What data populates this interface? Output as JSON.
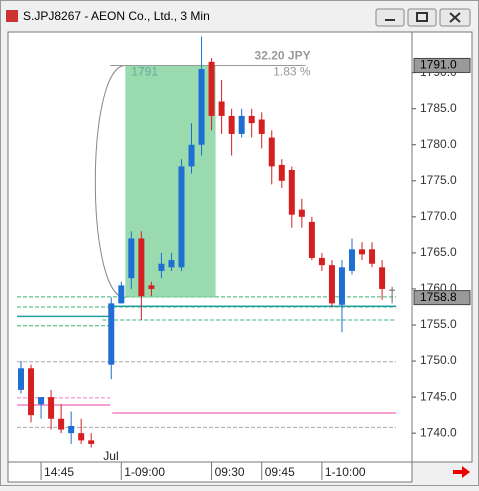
{
  "window": {
    "title": "S.JPJ8267 - AEON Co., Ltd., 3 Min"
  },
  "chart_data": {
    "type": "candlestick",
    "x": [
      null,
      null,
      "14:45",
      null,
      null,
      null,
      null,
      null,
      null,
      null,
      "1-09:00",
      null,
      null,
      null,
      null,
      null,
      null,
      null,
      null,
      "09:30",
      null,
      null,
      null,
      null,
      "09:45",
      null,
      null,
      null,
      null,
      null,
      "1-10:00",
      null,
      null,
      null,
      null,
      null,
      null,
      null
    ],
    "month_label": {
      "index": 9,
      "label": "Jul"
    },
    "series": [
      {
        "up_color": "#1f6ed4",
        "down_color": "#d42020",
        "flat_color": "#666666",
        "open": [
          1746,
          1749,
          1744,
          1745,
          1742,
          1740,
          1740,
          1739,
          null,
          1749.5,
          1758,
          1761.5,
          1767,
          1760.5,
          1762.5,
          1763,
          1763,
          1777,
          1780,
          1791.5,
          1786,
          1784,
          1781.5,
          1784,
          1783.5,
          1781,
          1777.2,
          1776.5,
          1771,
          1769.3,
          1764.3,
          1763.3,
          1757.8,
          1762.5,
          1765.5,
          1765.5,
          1763,
          1759.9
        ],
        "high": [
          1750,
          1749.5,
          1745,
          1746,
          1744,
          1743,
          1742,
          1740,
          null,
          1758.8,
          1761,
          1768,
          1768,
          1761,
          1765,
          1765,
          1778,
          1783,
          1795,
          1792,
          1789,
          1785,
          1785,
          1785,
          1784.5,
          1782,
          1778,
          1777,
          1772.5,
          1770,
          1765,
          1764,
          1764,
          1767,
          1766.5,
          1766.5,
          1764,
          1760.3
        ],
        "low": [
          1745.5,
          1741.5,
          1742,
          1740.5,
          1740,
          1738.5,
          1738.5,
          1738,
          null,
          1747.5,
          1758,
          1760,
          1755.7,
          1759,
          1761.5,
          1762.5,
          1762.5,
          1776,
          1778.5,
          1782,
          1781.5,
          1778.5,
          1781,
          1781,
          1779.5,
          1774.5,
          1774,
          1768.5,
          1768.5,
          1764,
          1762.5,
          1757.5,
          1754,
          1762,
          1764,
          1763,
          1758.5,
          1758
        ],
        "close": [
          1749,
          1742.5,
          1745,
          1742,
          1740.5,
          1741,
          1739,
          1738.5,
          null,
          1758,
          1760.5,
          1767,
          1759,
          1760,
          1763.5,
          1764,
          1777,
          1780,
          1790.5,
          1784,
          1784,
          1781.5,
          1784,
          1783,
          1781.5,
          1777,
          1775,
          1770.3,
          1770,
          1764.3,
          1763.3,
          1758,
          1763,
          1765.5,
          1764.8,
          1763.5,
          1760,
          1759.9
        ]
      }
    ],
    "ylim": [
      1736,
      1795.5
    ],
    "yticks": [
      {
        "value": 1740,
        "label": "1740.0"
      },
      {
        "value": 1745,
        "label": "1745.0"
      },
      {
        "value": 1750,
        "label": "1750.0"
      },
      {
        "value": 1755,
        "label": "1755.0"
      },
      {
        "value": 1760,
        "label": "1760.0"
      },
      {
        "value": 1765,
        "label": "1765.0"
      },
      {
        "value": 1770,
        "label": "1770.0"
      },
      {
        "value": 1775,
        "label": "1775.0"
      },
      {
        "value": 1780,
        "label": "1780.0"
      },
      {
        "value": 1785,
        "label": "1785.0"
      },
      {
        "value": 1790,
        "label": "1790.0"
      }
    ],
    "price_labels": [
      {
        "value": 1791,
        "label": "1791.0"
      },
      {
        "value": 1758.8,
        "label": "1758.8"
      }
    ],
    "levels": [
      {
        "value": 1758.9,
        "color": "#3cb371",
        "dashed": true,
        "from": 0,
        "to": 37
      },
      {
        "value": 1757.5,
        "color": "#3cb371",
        "dashed": true,
        "from": 0,
        "to": 37
      },
      {
        "value": 1754.9,
        "color": "#3cb371",
        "dashed": true,
        "from": 0,
        "to": 8.5
      },
      {
        "value": 1755.7,
        "color": "#3cb371",
        "dashed": true,
        "from": 8.5,
        "to": 37
      },
      {
        "value": 1756.2,
        "color": "#20a0a0",
        "dashed": false,
        "from": 0,
        "to": 8.5
      },
      {
        "value": 1757.6,
        "color": "#20a0a0",
        "dashed": false,
        "from": 9.5,
        "to": 37
      },
      {
        "value": 1749.9,
        "color": "#aaaaaa",
        "dashed": true,
        "from": 0,
        "to": 37
      },
      {
        "value": 1740.8,
        "color": "#aaaaaa",
        "dashed": true,
        "from": 0,
        "to": 37
      },
      {
        "value": 1744.9,
        "color": "#f080c0",
        "dashed": true,
        "from": 0,
        "to": 8.5
      },
      {
        "value": 1743.9,
        "color": "#f080c0",
        "dashed": false,
        "from": 0,
        "to": 8.5
      },
      {
        "value": 1742.8,
        "color": "#f080c0",
        "dashed": false,
        "from": 9.5,
        "to": 37
      }
    ],
    "measure": {
      "from": 10.4,
      "to": 19.4,
      "top": 1791,
      "bottom": 1758.8,
      "color": "#7fd19b",
      "price_label": "1791",
      "change_label": "32.20 JPY",
      "percent_label": "1.83 %"
    }
  }
}
